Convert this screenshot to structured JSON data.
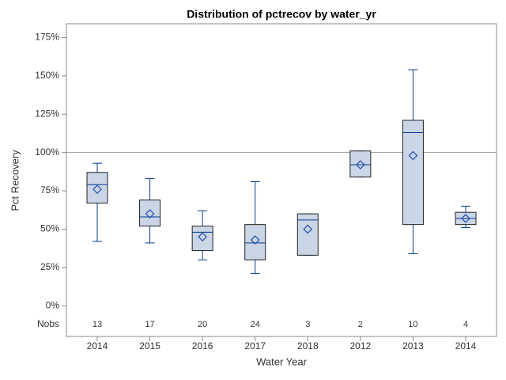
{
  "chart_data": {
    "type": "box",
    "title": "Distribution of pctrecov by water_yr",
    "xlabel": "Water Year",
    "ylabel": "Pct Recovery",
    "categories": [
      "2014",
      "2015",
      "2016",
      "2017",
      "2018",
      "2012",
      "2013",
      "2014"
    ],
    "boxes": [
      {
        "min": 42,
        "q1": 67,
        "median": 79,
        "q3": 87,
        "max": 93,
        "mean": 76
      },
      {
        "min": 41,
        "q1": 52,
        "median": 58,
        "q3": 69,
        "max": 83,
        "mean": 60
      },
      {
        "min": 30,
        "q1": 36,
        "median": 48,
        "q3": 52,
        "max": 62,
        "mean": 45
      },
      {
        "min": 21,
        "q1": 30,
        "median": 41,
        "q3": 53,
        "max": 81,
        "mean": 43
      },
      {
        "min": 33,
        "q1": 33,
        "median": 56,
        "q3": 60,
        "max": 60,
        "mean": 50
      },
      {
        "min": 84,
        "q1": 84,
        "median": 92,
        "q3": 101,
        "max": 101,
        "mean": 92
      },
      {
        "min": 34,
        "q1": 53,
        "median": 113,
        "q3": 121,
        "max": 154,
        "mean": 98
      },
      {
        "min": 51,
        "q1": 53,
        "median": 57,
        "q3": 61,
        "max": 65,
        "mean": 57
      }
    ],
    "nobs_label": "Nobs",
    "nobs": [
      13,
      17,
      20,
      24,
      3,
      2,
      10,
      4
    ],
    "ylim": [
      -20,
      184
    ],
    "yticks": [
      {
        "value": 0,
        "label": "0%"
      },
      {
        "value": 25,
        "label": "25%"
      },
      {
        "value": 50,
        "label": "50%"
      },
      {
        "value": 75,
        "label": "75%"
      },
      {
        "value": 100,
        "label": "100%"
      },
      {
        "value": 125,
        "label": "125%"
      },
      {
        "value": 150,
        "label": "150%"
      },
      {
        "value": 175,
        "label": "175%"
      }
    ],
    "refline": 100,
    "box_fill": "#cad5e6",
    "line_color": "#0a3a8c"
  }
}
